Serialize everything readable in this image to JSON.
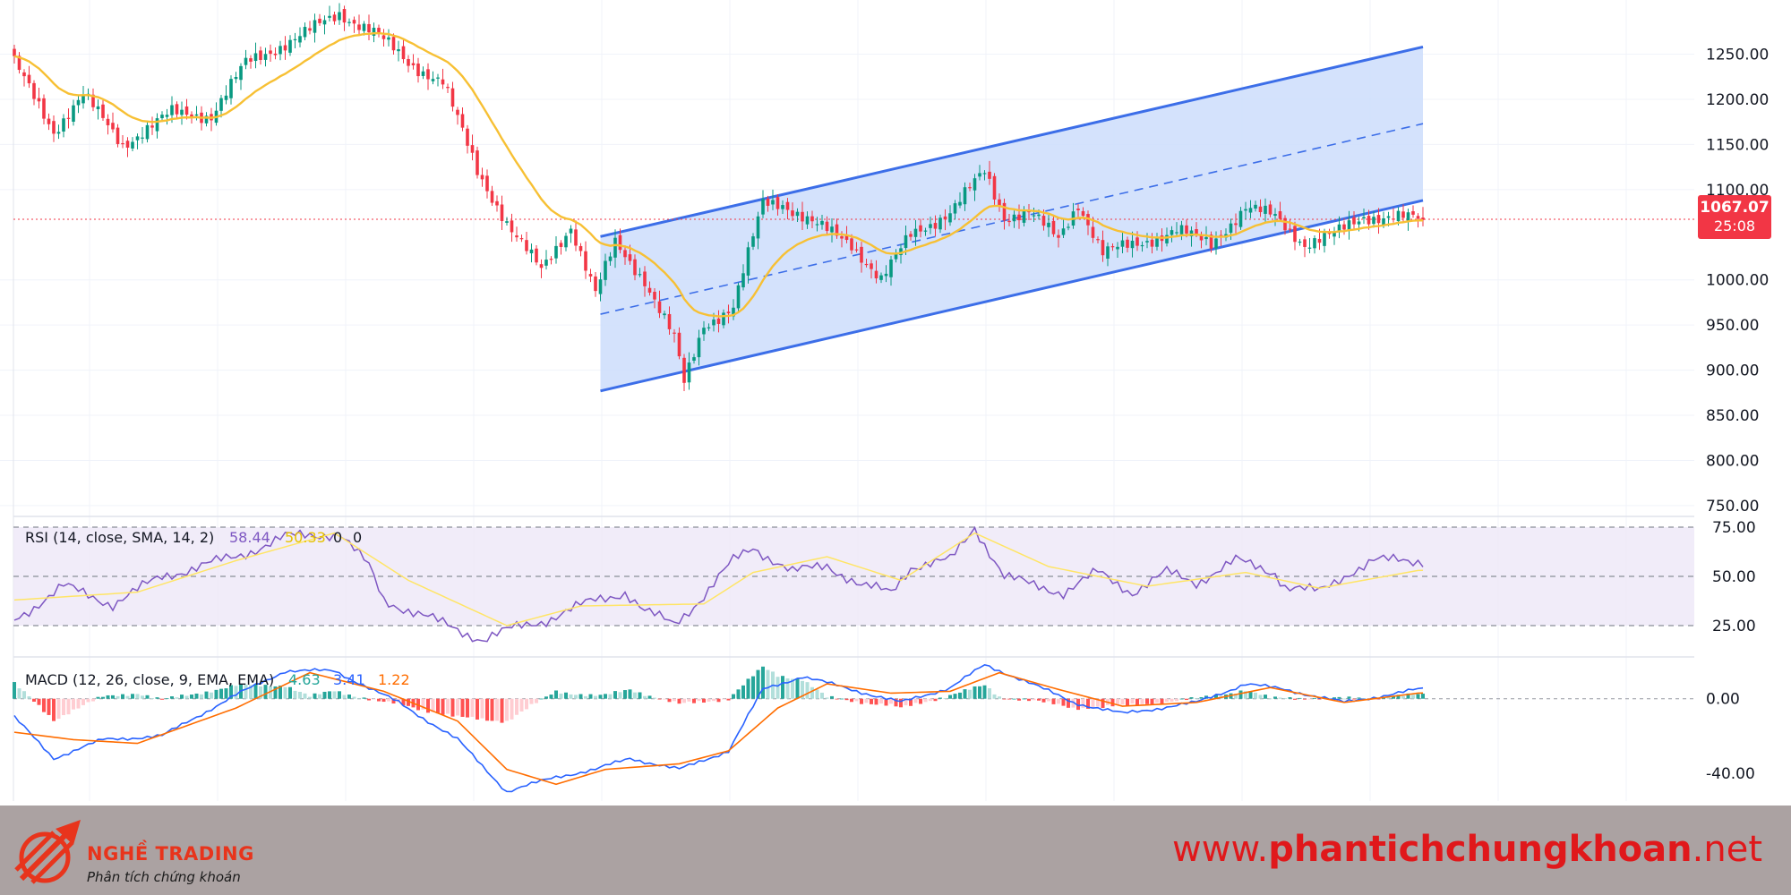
{
  "colors": {
    "up": "#089981",
    "down": "#f23645",
    "ma": "#f7c034",
    "channel": "#3c6ee8",
    "channel_fill": "#cdddfc",
    "rsi": "#7e57c2",
    "rsi_ma": "#ffe566",
    "macd": "#2962ff",
    "signal": "#ff6d00",
    "footer_bg": "#aba2a2",
    "brand": "#e0181b"
  },
  "price_axis": {
    "ticks": [
      "1250.00",
      "1200.00",
      "1150.00",
      "1100.00",
      "1000.00",
      "950.00",
      "900.00",
      "850.00",
      "800.00",
      "750.00"
    ],
    "tick_values": [
      1250,
      1200,
      1150,
      1100,
      1000,
      950,
      900,
      850,
      800,
      750
    ]
  },
  "price_marker": {
    "price": "1067.07",
    "countdown": "25:08"
  },
  "chart_data": [
    {
      "type": "candlestick",
      "ylim": [
        740,
        1310
      ],
      "moving_average": "yellow",
      "channel": {
        "start_bar": 119,
        "end_bar": 286,
        "upper": [
          1048,
          1258
        ],
        "lower": [
          877,
          1088
        ],
        "mid": [
          962,
          1173
        ]
      },
      "last_price": 1067.07,
      "anchors": [
        [
          0,
          1240
        ],
        [
          8,
          1165
        ],
        [
          14,
          1205
        ],
        [
          22,
          1150
        ],
        [
          32,
          1185
        ],
        [
          40,
          1182
        ],
        [
          47,
          1240
        ],
        [
          58,
          1270
        ],
        [
          66,
          1295
        ],
        [
          73,
          1275
        ],
        [
          80,
          1240
        ],
        [
          87,
          1220
        ],
        [
          94,
          1120
        ],
        [
          101,
          1055
        ],
        [
          107,
          1010
        ],
        [
          113,
          1060
        ],
        [
          118,
          985
        ],
        [
          122,
          1040
        ],
        [
          128,
          1000
        ],
        [
          134,
          935
        ],
        [
          136,
          885
        ],
        [
          140,
          950
        ],
        [
          146,
          970
        ],
        [
          152,
          1085
        ],
        [
          156,
          1085
        ],
        [
          163,
          1060
        ],
        [
          170,
          1040
        ],
        [
          176,
          1000
        ],
        [
          182,
          1050
        ],
        [
          190,
          1075
        ],
        [
          197,
          1120
        ],
        [
          201,
          1070
        ],
        [
          206,
          1075
        ],
        [
          212,
          1045
        ],
        [
          216,
          1085
        ],
        [
          221,
          1030
        ],
        [
          228,
          1040
        ],
        [
          236,
          1055
        ],
        [
          243,
          1040
        ],
        [
          250,
          1080
        ],
        [
          256,
          1070
        ],
        [
          262,
          1040
        ],
        [
          268,
          1050
        ],
        [
          274,
          1070
        ],
        [
          280,
          1070
        ],
        [
          285,
          1067
        ]
      ]
    },
    {
      "type": "line",
      "title": "RSI (14, close, SMA, 14, 2)",
      "values_label": [
        "58.44",
        "50.33",
        "0",
        "0"
      ],
      "ylim": [
        10,
        80
      ],
      "ticks": [
        75,
        50,
        25
      ],
      "tick_labels": [
        "75.00",
        "50.00",
        "25.00"
      ],
      "anchors": [
        [
          0,
          28
        ],
        [
          10,
          45
        ],
        [
          20,
          36
        ],
        [
          30,
          50
        ],
        [
          45,
          60
        ],
        [
          55,
          70
        ],
        [
          66,
          72
        ],
        [
          72,
          55
        ],
        [
          75,
          38
        ],
        [
          83,
          30
        ],
        [
          95,
          18
        ],
        [
          102,
          24
        ],
        [
          108,
          28
        ],
        [
          118,
          38
        ],
        [
          124,
          42
        ],
        [
          128,
          32
        ],
        [
          134,
          26
        ],
        [
          140,
          40
        ],
        [
          146,
          58
        ],
        [
          150,
          65
        ],
        [
          158,
          52
        ],
        [
          165,
          56
        ],
        [
          172,
          45
        ],
        [
          178,
          42
        ],
        [
          182,
          55
        ],
        [
          190,
          58
        ],
        [
          195,
          75
        ],
        [
          201,
          50
        ],
        [
          206,
          46
        ],
        [
          213,
          42
        ],
        [
          220,
          52
        ],
        [
          227,
          42
        ],
        [
          234,
          52
        ],
        [
          240,
          47
        ],
        [
          248,
          58
        ],
        [
          256,
          52
        ],
        [
          258,
          45
        ],
        [
          265,
          42
        ],
        [
          271,
          52
        ],
        [
          276,
          58
        ],
        [
          285,
          58
        ]
      ],
      "ma_anchors": [
        [
          0,
          38
        ],
        [
          25,
          42
        ],
        [
          45,
          58
        ],
        [
          65,
          72
        ],
        [
          80,
          48
        ],
        [
          100,
          25
        ],
        [
          115,
          35
        ],
        [
          140,
          36
        ],
        [
          150,
          52
        ],
        [
          165,
          60
        ],
        [
          180,
          48
        ],
        [
          195,
          72
        ],
        [
          210,
          55
        ],
        [
          230,
          45
        ],
        [
          250,
          52
        ],
        [
          265,
          44
        ],
        [
          285,
          53
        ]
      ]
    },
    {
      "type": "line",
      "title": "MACD (12, 26, close, 9, EMA, EMA)",
      "values_label": [
        "4.63",
        "3.41",
        "1.22"
      ],
      "ylim": [
        -55,
        22
      ],
      "ticks": [
        0,
        -40
      ],
      "tick_labels": [
        "0.00",
        "-40.00"
      ],
      "macd_anchors": [
        [
          0,
          -10
        ],
        [
          8,
          -32
        ],
        [
          18,
          -22
        ],
        [
          30,
          -20
        ],
        [
          45,
          2
        ],
        [
          55,
          15
        ],
        [
          65,
          15
        ],
        [
          78,
          -2
        ],
        [
          90,
          -22
        ],
        [
          100,
          -50
        ],
        [
          110,
          -42
        ],
        [
          118,
          -38
        ],
        [
          125,
          -32
        ],
        [
          135,
          -38
        ],
        [
          145,
          -28
        ],
        [
          152,
          5
        ],
        [
          160,
          12
        ],
        [
          170,
          5
        ],
        [
          180,
          -2
        ],
        [
          190,
          6
        ],
        [
          197,
          18
        ],
        [
          205,
          10
        ],
        [
          215,
          -2
        ],
        [
          225,
          -8
        ],
        [
          240,
          -2
        ],
        [
          250,
          8
        ],
        [
          258,
          5
        ],
        [
          270,
          -2
        ],
        [
          285,
          5
        ]
      ],
      "signal_anchors": [
        [
          0,
          -18
        ],
        [
          12,
          -22
        ],
        [
          25,
          -24
        ],
        [
          45,
          -5
        ],
        [
          60,
          14
        ],
        [
          75,
          4
        ],
        [
          90,
          -12
        ],
        [
          100,
          -38
        ],
        [
          110,
          -46
        ],
        [
          120,
          -38
        ],
        [
          135,
          -35
        ],
        [
          145,
          -28
        ],
        [
          155,
          -5
        ],
        [
          165,
          8
        ],
        [
          178,
          3
        ],
        [
          190,
          4
        ],
        [
          200,
          14
        ],
        [
          212,
          5
        ],
        [
          225,
          -4
        ],
        [
          240,
          -2
        ],
        [
          255,
          6
        ],
        [
          270,
          -2
        ],
        [
          285,
          3
        ]
      ]
    }
  ],
  "footer": {
    "brand_name": "NGHỀ TRADING",
    "brand_tagline": "Phân tích chứng khoán",
    "url_prefix": "www.",
    "url_domain": "phantichchungkhoan",
    "url_suffix": ".net"
  }
}
